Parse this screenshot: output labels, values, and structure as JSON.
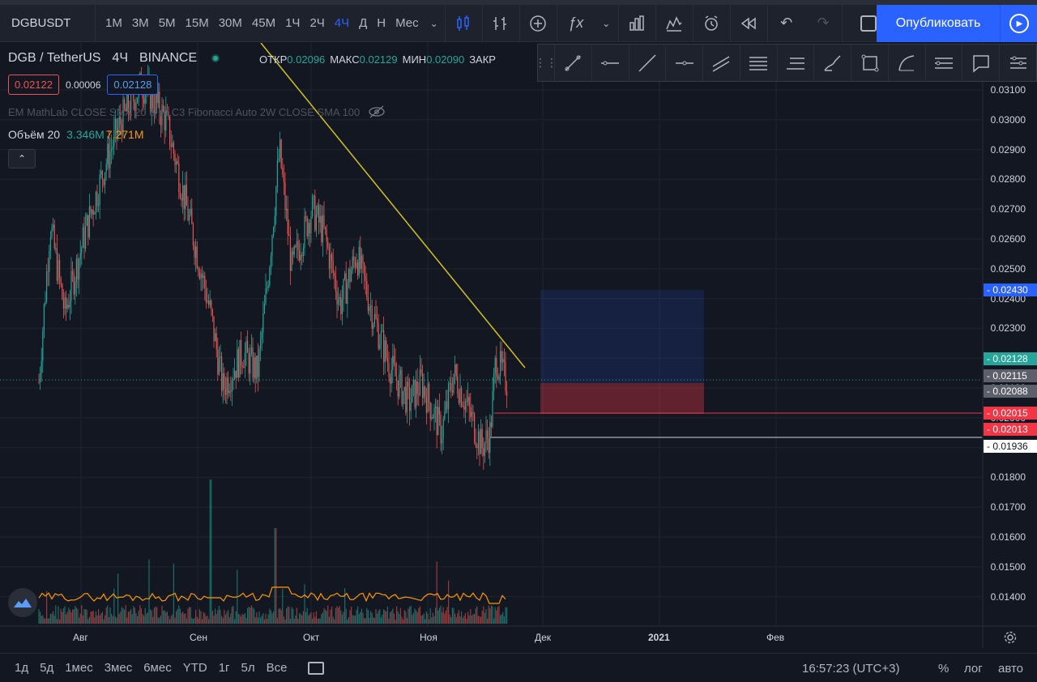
{
  "toolbar": {
    "symbol": "DGBUSDT",
    "timeframes": [
      "1М",
      "3М",
      "5М",
      "15М",
      "30М",
      "45М",
      "1Ч",
      "2Ч",
      "4Ч",
      "Д",
      "Н",
      "Мес"
    ],
    "active_timeframe": "4Ч",
    "publish_label": "Опубликовать",
    "icons": [
      "candles-icon",
      "indicators-icon",
      "add-icon",
      "fx-icon",
      "bars-compare-icon",
      "templates-icon",
      "alert-icon",
      "replay-icon",
      "undo-icon",
      "redo-icon"
    ]
  },
  "legend": {
    "symbol_title": "DGB / TetherUS",
    "interval": "4Ч",
    "exchange": "BINANCE",
    "open_label": "ОТКР",
    "open_value": "0.02096",
    "high_label": "МАКС",
    "high_value": "0.02129",
    "low_label": "МИН",
    "low_value": "0.02090",
    "close_label": "ЗАКР",
    "bid_price": "0.02122",
    "spread": "0.00006",
    "ask_price": "0.02128",
    "indicators_text": "EM MathLab CLOSE SMA 20 3 HLC3 Fibonacci Auto 2W CLOSE SMA 100",
    "volume_label": "Объём 20",
    "volume_value": "3.346M",
    "volume_ma": "7.271M",
    "collapse_symbol": "⌃"
  },
  "price_axis": {
    "ticks": [
      "0.03100",
      "0.03000",
      "0.02900",
      "0.02800",
      "0.02700",
      "0.02600",
      "0.02500",
      "0.02400",
      "0.02300",
      "0.02200",
      "0.02100",
      "0.02000",
      "0.01900",
      "0.01800",
      "0.01700",
      "0.01600",
      "0.01500",
      "0.01400"
    ],
    "tags": [
      {
        "value": "0.02430",
        "bg": "#2962ff",
        "fg": "#ffffff"
      },
      {
        "value": "0.02128",
        "bg": "#26a69a",
        "fg": "#ffffff"
      },
      {
        "value": "0.02115",
        "bg": "#5d606b",
        "fg": "#ffffff"
      },
      {
        "value": "0.02088",
        "bg": "#5d606b",
        "fg": "#ffffff"
      },
      {
        "value": "0.02015",
        "bg": "#f23645",
        "fg": "#ffffff"
      },
      {
        "value": "0.02013",
        "bg": "#f23645",
        "fg": "#ffffff"
      },
      {
        "value": "0.01936",
        "bg": "#ffffff",
        "fg": "#131722"
      }
    ]
  },
  "time_axis": {
    "labels": [
      "Авг",
      "Сен",
      "Окт",
      "Ноя",
      "Дек",
      "2021",
      "Фев"
    ]
  },
  "bottom": {
    "ranges": [
      "1д",
      "5д",
      "1мес",
      "3мес",
      "6мес",
      "YTD",
      "1г",
      "5л",
      "Все"
    ],
    "clock": "16:57:23 (UTC+3)",
    "percent": "%",
    "log": "лог",
    "auto": "авто"
  },
  "colors": {
    "up": "#26a69a",
    "down": "#ef5350",
    "trendline": "#d4c21a",
    "accent": "#2962ff"
  }
}
